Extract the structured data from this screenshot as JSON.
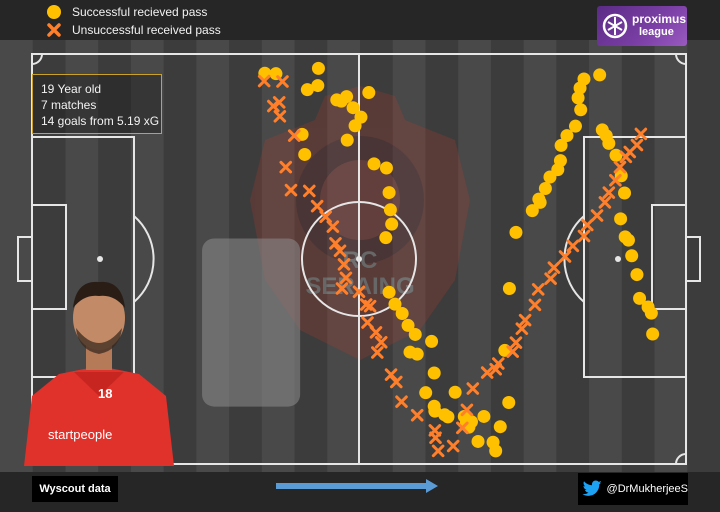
{
  "legend": {
    "success_label": "Successful recieved pass",
    "fail_label": "Unsuccessful received pass",
    "success_color": "#ffc000",
    "fail_color": "#ff7f2a"
  },
  "info": {
    "line1": "19 Year old",
    "line2": "7 matches",
    "line3": "14 goals from 5.19 xG"
  },
  "badge": {
    "line1": "proximus",
    "line2": "league"
  },
  "footer": {
    "source": "Wyscout data",
    "twitter": "@DrMukherjeeS"
  },
  "photo": {
    "shirt_number": "18",
    "sponsor": "startpeople"
  },
  "crest": {
    "initials": "RC",
    "name": "SERAING"
  },
  "colors": {
    "background": "#262626",
    "pitch_stripe_light": "#494949",
    "pitch_stripe_dark": "#3c3c3c",
    "highlight_zone": "#8c8c8c",
    "arrow": "#5b9bd5"
  },
  "chart_data": {
    "type": "scatter",
    "xlim": [
      0,
      100
    ],
    "ylim": [
      0,
      100
    ],
    "attack_direction": "left-to-right",
    "highlight_zone": {
      "x": [
        26,
        41
      ],
      "y": [
        14,
        55
      ]
    },
    "series": [
      {
        "name": "Successful recieved pass",
        "marker": "circle",
        "points": [
          [
            37.3,
            95.2
          ],
          [
            43.8,
            96.5
          ],
          [
            43.7,
            92.3
          ],
          [
            42.1,
            91.3
          ],
          [
            35.6,
            95.3
          ],
          [
            41.3,
            80.4
          ],
          [
            41.7,
            75.5
          ],
          [
            46.6,
            88.8
          ],
          [
            48.1,
            89.6
          ],
          [
            47.3,
            88.5
          ],
          [
            49.1,
            86.9
          ],
          [
            50.3,
            84.6
          ],
          [
            49.4,
            82.5
          ],
          [
            48.2,
            79.0
          ],
          [
            51.5,
            90.6
          ],
          [
            52.3,
            73.2
          ],
          [
            54.2,
            72.2
          ],
          [
            54.6,
            66.2
          ],
          [
            54.8,
            62.0
          ],
          [
            55.0,
            58.5
          ],
          [
            54.1,
            55.2
          ],
          [
            54.6,
            41.9
          ],
          [
            55.5,
            39.0
          ],
          [
            56.6,
            36.7
          ],
          [
            57.5,
            33.8
          ],
          [
            58.6,
            31.6
          ],
          [
            57.8,
            27.3
          ],
          [
            58.9,
            26.8
          ],
          [
            61.1,
            29.9
          ],
          [
            61.5,
            22.2
          ],
          [
            60.2,
            17.4
          ],
          [
            61.5,
            14.1
          ],
          [
            61.6,
            12.9
          ],
          [
            63.1,
            12.0
          ],
          [
            63.6,
            11.5
          ],
          [
            64.7,
            17.5
          ],
          [
            66.4,
            9.9
          ],
          [
            66.8,
            9.0
          ],
          [
            67.2,
            10.3
          ],
          [
            66.1,
            11.6
          ],
          [
            68.2,
            5.5
          ],
          [
            70.9,
            3.2
          ],
          [
            70.5,
            5.3
          ],
          [
            71.6,
            9.1
          ],
          [
            69.1,
            11.6
          ],
          [
            72.9,
            15.0
          ],
          [
            72.3,
            27.7
          ],
          [
            73.0,
            42.8
          ],
          [
            74.0,
            56.5
          ],
          [
            76.5,
            61.8
          ],
          [
            77.5,
            64.6
          ],
          [
            77.7,
            63.8
          ],
          [
            78.5,
            67.2
          ],
          [
            79.2,
            70.0
          ],
          [
            80.4,
            71.8
          ],
          [
            80.8,
            74.0
          ],
          [
            80.9,
            77.7
          ],
          [
            81.8,
            80.1
          ],
          [
            83.1,
            82.4
          ],
          [
            83.9,
            86.4
          ],
          [
            83.5,
            89.3
          ],
          [
            83.8,
            91.7
          ],
          [
            84.4,
            93.9
          ],
          [
            86.8,
            94.9
          ],
          [
            87.2,
            81.5
          ],
          [
            87.8,
            80.1
          ],
          [
            88.2,
            78.2
          ],
          [
            89.3,
            75.3
          ],
          [
            90.1,
            70.3
          ],
          [
            90.6,
            66.1
          ],
          [
            90.0,
            59.8
          ],
          [
            90.7,
            55.4
          ],
          [
            91.2,
            54.6
          ],
          [
            91.7,
            50.8
          ],
          [
            92.5,
            46.2
          ],
          [
            92.9,
            40.4
          ],
          [
            94.2,
            38.3
          ],
          [
            94.7,
            36.8
          ],
          [
            94.9,
            31.7
          ]
        ]
      },
      {
        "name": "Unsuccessful received pass",
        "marker": "x",
        "points": [
          [
            35.5,
            93.4
          ],
          [
            38.3,
            93.3
          ],
          [
            37.8,
            88.2
          ],
          [
            36.9,
            87.3
          ],
          [
            37.9,
            84.8
          ],
          [
            40.1,
            80.1
          ],
          [
            38.8,
            72.4
          ],
          [
            39.6,
            66.8
          ],
          [
            42.4,
            66.6
          ],
          [
            43.6,
            62.9
          ],
          [
            44.9,
            60.3
          ],
          [
            46.0,
            57.9
          ],
          [
            46.4,
            53.8
          ],
          [
            47.1,
            52.0
          ],
          [
            47.7,
            48.7
          ],
          [
            48.0,
            45.4
          ],
          [
            47.4,
            42.8
          ],
          [
            50.0,
            42.0
          ],
          [
            51.1,
            38.9
          ],
          [
            51.7,
            38.5
          ],
          [
            51.3,
            34.5
          ],
          [
            52.6,
            32.1
          ],
          [
            53.4,
            29.7
          ],
          [
            52.8,
            27.2
          ],
          [
            54.9,
            21.8
          ],
          [
            55.7,
            20.0
          ],
          [
            56.5,
            15.2
          ],
          [
            58.9,
            11.9
          ],
          [
            61.6,
            8.2
          ],
          [
            61.7,
            6.4
          ],
          [
            62.1,
            3.2
          ],
          [
            64.4,
            4.4
          ],
          [
            65.8,
            8.8
          ],
          [
            66.5,
            13.2
          ],
          [
            67.4,
            18.4
          ],
          [
            69.6,
            22.3
          ],
          [
            70.9,
            23.1
          ],
          [
            71.3,
            24.5
          ],
          [
            73.5,
            27.4
          ],
          [
            74.0,
            29.6
          ],
          [
            74.9,
            33.0
          ],
          [
            75.4,
            35.1
          ],
          [
            76.9,
            38.8
          ],
          [
            77.4,
            42.6
          ],
          [
            79.3,
            45.2
          ],
          [
            79.8,
            47.9
          ],
          [
            81.5,
            50.6
          ],
          [
            82.7,
            53.2
          ],
          [
            84.4,
            55.6
          ],
          [
            84.9,
            58.3
          ],
          [
            86.4,
            60.6
          ],
          [
            87.6,
            63.8
          ],
          [
            88.2,
            66.2
          ],
          [
            89.2,
            69.2
          ],
          [
            89.9,
            72.4
          ],
          [
            90.8,
            74.9
          ],
          [
            91.4,
            76.1
          ],
          [
            92.5,
            77.8
          ],
          [
            93.1,
            80.5
          ]
        ]
      }
    ]
  }
}
